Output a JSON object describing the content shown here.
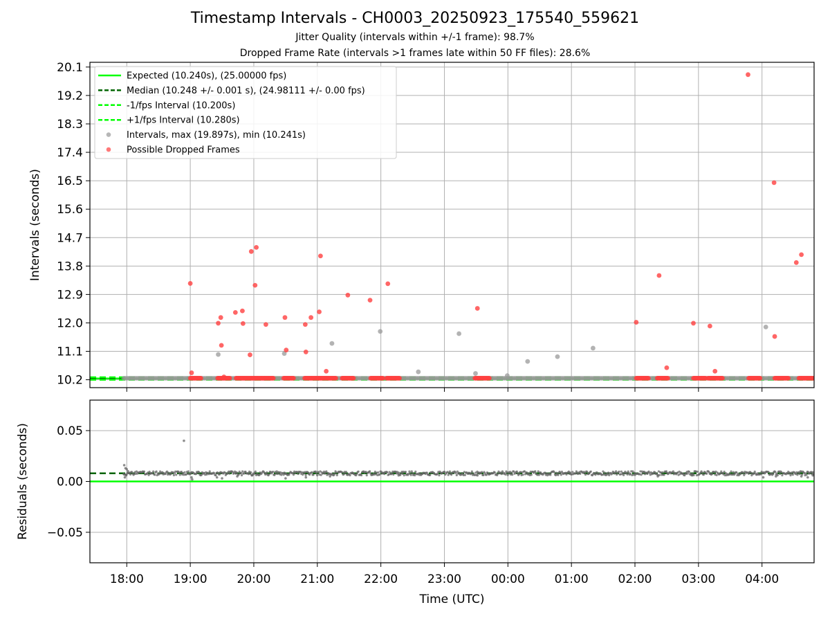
{
  "figure": {
    "title": "Timestamp Intervals - CH0003_20250923_175540_559621",
    "subtitle_1": "Jitter Quality (intervals within +/-1 frame): 98.7%",
    "subtitle_2": "Dropped Frame Rate (intervals >1 frames late within 50 FF files): 28.6%",
    "xlabel": "Time (UTC)"
  },
  "colors": {
    "expected": "#00ff00",
    "median": "#006400",
    "band": "#00ff00",
    "intervals": "#999999",
    "dropped": "#ff4040",
    "residuals": "#666666",
    "grid": "#b0b0b0"
  },
  "chart_data": [
    {
      "type": "scatter",
      "ylabel": "Intervals (seconds)",
      "x_axis": {
        "unit": "hours since 00:00 UTC of first day (continuous across midnight)",
        "range": [
          17.42,
          28.82
        ],
        "tick_values": [
          18,
          19,
          20,
          21,
          22,
          23,
          24,
          25,
          26,
          27,
          28
        ],
        "tick_labels": [
          "18:00",
          "19:00",
          "20:00",
          "21:00",
          "22:00",
          "23:00",
          "00:00",
          "01:00",
          "02:00",
          "03:00",
          "04:00"
        ]
      },
      "y_axis": {
        "range": [
          9.95,
          20.25
        ],
        "tick_values": [
          10.2,
          11.1,
          12.0,
          12.9,
          13.8,
          14.7,
          15.6,
          16.5,
          17.4,
          18.3,
          19.2,
          20.1
        ],
        "tick_labels": [
          "10.2",
          "11.1",
          "12.0",
          "12.9",
          "13.8",
          "14.7",
          "15.6",
          "16.5",
          "17.4",
          "18.3",
          "19.2",
          "20.1"
        ]
      },
      "grid": true,
      "legend_position": "upper-left",
      "reference_lines": [
        {
          "name": "Expected (10.240s), (25.00000 fps)",
          "y": 10.24,
          "style": "solid",
          "color": "#00ff00"
        },
        {
          "name": "Median (10.248 +/- 0.001 s), (24.98111 +/- 0.00 fps)",
          "y": 10.248,
          "style": "dashed",
          "color": "#006400"
        },
        {
          "name": "-1/fps Interval (10.200s)",
          "y": 10.2,
          "style": "dashed",
          "color": "#00ff00"
        },
        {
          "name": "+1/fps Interval (10.280s)",
          "y": 10.28,
          "style": "dashed",
          "color": "#00ff00"
        }
      ],
      "series": [
        {
          "name": "Intervals, max (19.897s), min (10.241s)",
          "color": "#999999",
          "baseline": {
            "y": 10.248,
            "x_start": 17.95,
            "x_end": 28.82
          },
          "points": [
            [
              19.44,
              11.0
            ],
            [
              20.48,
              11.03
            ],
            [
              21.23,
              11.35
            ],
            [
              21.99,
              11.73
            ],
            [
              22.59,
              10.45
            ],
            [
              23.23,
              11.66
            ],
            [
              23.49,
              10.4
            ],
            [
              23.99,
              10.33
            ],
            [
              24.31,
              10.78
            ],
            [
              24.78,
              10.93
            ],
            [
              25.34,
              11.2
            ],
            [
              28.06,
              11.87
            ]
          ]
        },
        {
          "name": "Possible Dropped Frames",
          "color": "#ff4040",
          "clusters": [
            [
              19.0,
              19.17
            ],
            [
              19.43,
              19.63
            ],
            [
              19.72,
              20.32
            ],
            [
              20.47,
              20.63
            ],
            [
              20.8,
              21.3
            ],
            [
              21.39,
              21.58
            ],
            [
              21.84,
              22.04
            ],
            [
              22.09,
              22.3
            ],
            [
              23.48,
              23.72
            ],
            [
              26.02,
              26.22
            ],
            [
              26.35,
              26.52
            ],
            [
              26.92,
              27.12
            ],
            [
              27.15,
              27.38
            ],
            [
              27.79,
              27.98
            ],
            [
              28.2,
              28.42
            ],
            [
              28.58,
              28.82
            ]
          ],
          "points": [
            [
              19.0,
              13.25
            ],
            [
              19.02,
              10.42
            ],
            [
              19.44,
              11.99
            ],
            [
              19.48,
              12.17
            ],
            [
              19.49,
              11.29
            ],
            [
              19.53,
              10.29
            ],
            [
              19.71,
              12.33
            ],
            [
              19.82,
              12.38
            ],
            [
              19.83,
              11.98
            ],
            [
              19.94,
              10.99
            ],
            [
              19.96,
              14.26
            ],
            [
              20.02,
              13.19
            ],
            [
              20.04,
              14.39
            ],
            [
              20.19,
              11.95
            ],
            [
              20.49,
              12.17
            ],
            [
              20.51,
              11.14
            ],
            [
              20.81,
              11.95
            ],
            [
              20.82,
              11.08
            ],
            [
              20.9,
              12.17
            ],
            [
              21.03,
              12.35
            ],
            [
              21.05,
              14.12
            ],
            [
              21.14,
              10.47
            ],
            [
              21.48,
              12.88
            ],
            [
              21.83,
              12.72
            ],
            [
              22.11,
              13.24
            ],
            [
              23.52,
              12.46
            ],
            [
              26.02,
              12.02
            ],
            [
              26.38,
              13.5
            ],
            [
              26.5,
              10.58
            ],
            [
              26.92,
              11.99
            ],
            [
              27.18,
              11.9
            ],
            [
              27.26,
              10.47
            ],
            [
              27.78,
              19.86
            ],
            [
              28.2,
              11.57
            ],
            [
              28.19,
              16.44
            ],
            [
              28.54,
              13.91
            ],
            [
              28.62,
              14.16
            ]
          ]
        }
      ],
      "legend_entries": [
        "Expected (10.240s), (25.00000 fps)",
        "Median (10.248 +/- 0.001 s), (24.98111 +/- 0.00 fps)",
        "-1/fps Interval (10.200s)",
        "+1/fps Interval (10.280s)",
        "Intervals, max (19.897s), min (10.241s)",
        "Possible Dropped Frames"
      ]
    },
    {
      "type": "scatter",
      "ylabel": "Residuals (seconds)",
      "xlabel": "Time (UTC)",
      "x_axis": {
        "range": [
          17.42,
          28.82
        ],
        "tick_values": [
          18,
          19,
          20,
          21,
          22,
          23,
          24,
          25,
          26,
          27,
          28
        ],
        "tick_labels": [
          "18:00",
          "19:00",
          "20:00",
          "21:00",
          "22:00",
          "23:00",
          "00:00",
          "01:00",
          "02:00",
          "03:00",
          "04:00"
        ]
      },
      "y_axis": {
        "range": [
          -0.08,
          0.08
        ],
        "tick_values": [
          -0.05,
          0.0,
          0.05
        ],
        "tick_labels": [
          "−0.05",
          "0.00",
          "0.05"
        ]
      },
      "grid": true,
      "reference_lines": [
        {
          "name": "Expected",
          "y": 0.0,
          "style": "solid",
          "color": "#00ff00"
        },
        {
          "name": "Median",
          "y": 0.008,
          "style": "dashed",
          "color": "#006400"
        }
      ],
      "series": [
        {
          "name": "Residuals",
          "color": "#666666",
          "baseline": {
            "y": 0.008,
            "x_start": 17.95,
            "x_end": 28.82
          },
          "points": [
            [
              17.96,
              0.016
            ],
            [
              17.98,
              0.013
            ],
            [
              18.0,
              0.012
            ],
            [
              17.99,
              0.006
            ],
            [
              18.02,
              0.01
            ],
            [
              17.97,
              0.004
            ],
            [
              18.9,
              0.04
            ],
            [
              19.02,
              0.004
            ],
            [
              19.03,
              0.002
            ],
            [
              19.42,
              0.004
            ],
            [
              19.5,
              0.003
            ],
            [
              19.74,
              0.005
            ],
            [
              19.97,
              0.006
            ],
            [
              20.5,
              0.003
            ],
            [
              20.82,
              0.004
            ],
            [
              21.2,
              0.005
            ],
            [
              22.28,
              0.006
            ],
            [
              23.52,
              0.006
            ],
            [
              26.36,
              0.005
            ],
            [
              26.9,
              0.006
            ],
            [
              28.02,
              0.004
            ],
            [
              28.22,
              0.005
            ],
            [
              28.62,
              0.005
            ],
            [
              28.72,
              0.004
            ],
            [
              28.8,
              0.006
            ]
          ]
        }
      ]
    }
  ]
}
